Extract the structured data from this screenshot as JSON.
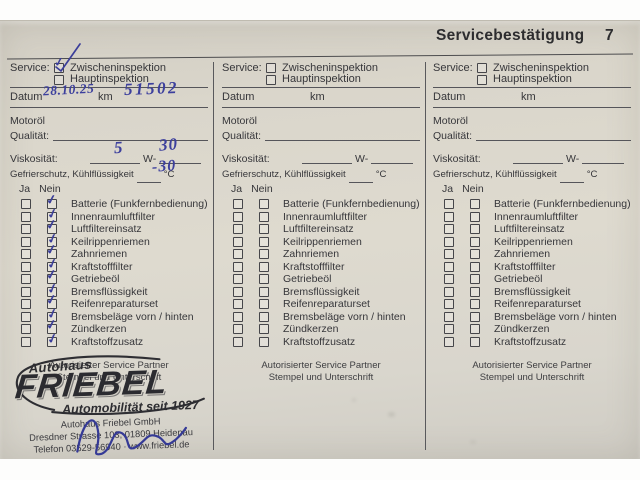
{
  "header": {
    "title": "Servicebestätigung",
    "page_number": "7"
  },
  "shared": {
    "service_label": "Service:",
    "option_zwischeninspektion": "Zwischeninspektion",
    "option_hauptinspektion": "Hauptinspektion",
    "datum_label": "Datum",
    "km_label": "km",
    "motoroel_label": "Motoröl",
    "qualitaet_label": "Qualität:",
    "viskositaet_label": "Viskosität:",
    "viscosity_w_label": "W-",
    "gefrierschutz_label": "Gefrierschutz, Kühlflüssigkeit",
    "celsius_label": "°C",
    "ja_label": "Ja",
    "nein_label": "Nein",
    "checklist": [
      "Batterie (Funkfernbedienung)",
      "Innenraumluftfilter",
      "Luftfiltereinsatz",
      "Keilrippenriemen",
      "Zahnriemen",
      "Kraftstofffilter",
      "Getriebeöl",
      "Bremsflüssigkeit",
      "Reifenreparaturset",
      "Bremsbeläge vorn / hinten",
      "Zündkerzen",
      "Kraftstoffzusatz"
    ],
    "footer_line1": "Autorisierter Service Partner",
    "footer_line2": "Stempel und Unterschrift",
    "check_glyph": "✓"
  },
  "columns": [
    {
      "service_zwischeninspektion_checked": true,
      "service_hauptinspektion_checked": false,
      "nein_all_checked": true,
      "handwriting": {
        "datum": "28.10.25",
        "km": "51502",
        "viskositaet_value": "5",
        "viskositaet_grade": "30",
        "gefrierschutz_temp": "-30"
      }
    },
    {
      "service_zwischeninspektion_checked": false,
      "service_hauptinspektion_checked": false,
      "nein_all_checked": false
    },
    {
      "service_zwischeninspektion_checked": false,
      "service_hauptinspektion_checked": false,
      "nein_all_checked": false
    }
  ],
  "stamp": {
    "prefix": "Autohaus",
    "brand": "FRIEBEL",
    "tagline": "Automobilität seit 1927",
    "company": "Autohaus Friebel GmbH",
    "address": "Dresdner Strasse 103, 01809 Heidenau",
    "contact": "Telefon 03529-56940 · www.friebel.de"
  },
  "colors": {
    "paper": "#dad6cb",
    "printed_ink": "#36363a",
    "handwriting_ink": "#3b3e9a",
    "stamp_ink": "#2e2e33"
  }
}
